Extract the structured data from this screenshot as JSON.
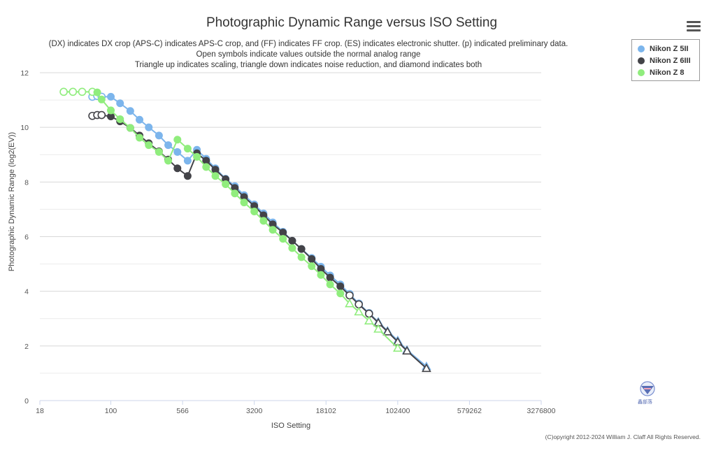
{
  "menu": {
    "icon": "hamburger-menu-icon"
  },
  "logo": {
    "text": "鑫部落",
    "icon": "blog-logo-icon"
  },
  "copyright": "(C)opyright 2012-2024 William J. Claff All Rights Reserved.",
  "chart_data": {
    "type": "line",
    "title": "Photographic Dynamic Range versus ISO Setting",
    "subtitle": [
      "(DX) indicates DX crop (APS-C) indicates APS-C crop, and (FF) indicates FF crop. (ES) indicates electronic shutter. (p) indicated preliminary data.",
      "Open symbols indicate values outside the normal analog range",
      "Triangle up indicates scaling, triangle down indicates noise reduction, and diamond indicates both"
    ],
    "xlabel": "ISO Setting",
    "ylabel": "Photographic Dynamic Range (log2(EV))",
    "x_scale": "log",
    "xlim": [
      18,
      3276800
    ],
    "x_ticks": [
      "18",
      "100",
      "566",
      "3200",
      "18102",
      "102400",
      "579262",
      "3276800"
    ],
    "x_tick_values": [
      18,
      100,
      566,
      3200,
      18102,
      102400,
      579262,
      3276800
    ],
    "ylim": [
      0,
      12
    ],
    "y_ticks": [
      "0",
      "2",
      "4",
      "6",
      "8",
      "10",
      "12"
    ],
    "y_tick_values": [
      0,
      2,
      4,
      6,
      8,
      10,
      12
    ],
    "grid": true,
    "legend_position": "top-right",
    "series": [
      {
        "name": "Nikon Z 5II",
        "color": "#7cb5ec",
        "points": [
          [
            64,
            11.12,
            "open"
          ],
          [
            72,
            11.15,
            "open"
          ],
          [
            80,
            11.12,
            "open"
          ],
          [
            100,
            11.12,
            "filled"
          ],
          [
            125,
            10.88,
            "filled"
          ],
          [
            160,
            10.6,
            "filled"
          ],
          [
            200,
            10.28,
            "filled"
          ],
          [
            250,
            10.0,
            "filled"
          ],
          [
            320,
            9.7,
            "filled"
          ],
          [
            400,
            9.35,
            "filled"
          ],
          [
            500,
            9.1,
            "filled"
          ],
          [
            640,
            8.78,
            "filled"
          ],
          [
            800,
            9.18,
            "filled"
          ],
          [
            1000,
            8.85,
            "filled"
          ],
          [
            1250,
            8.5,
            "filled"
          ],
          [
            1600,
            8.12,
            "filled"
          ],
          [
            2000,
            7.85,
            "filled"
          ],
          [
            2500,
            7.52,
            "filled"
          ],
          [
            3200,
            7.18,
            "filled"
          ],
          [
            4000,
            6.85,
            "filled"
          ],
          [
            5000,
            6.52,
            "filled"
          ],
          [
            6400,
            6.18,
            "filled"
          ],
          [
            8000,
            5.85,
            "filled"
          ],
          [
            10000,
            5.55,
            "filled"
          ],
          [
            12800,
            5.22,
            "filled"
          ],
          [
            16000,
            4.9,
            "filled"
          ],
          [
            20000,
            4.58,
            "filled"
          ],
          [
            25600,
            4.25,
            "filled"
          ],
          [
            32000,
            3.9,
            "open"
          ],
          [
            40000,
            3.55,
            "open"
          ],
          [
            51200,
            3.2,
            "open"
          ],
          [
            64000,
            2.88,
            "triangle-up"
          ],
          [
            80000,
            2.55,
            "triangle-up"
          ],
          [
            102400,
            2.2,
            "triangle-up"
          ],
          [
            128000,
            1.85,
            "triangle-up"
          ],
          [
            204800,
            1.25,
            "triangle-up"
          ]
        ]
      },
      {
        "name": "Nikon Z 6III",
        "color": "#434348",
        "points": [
          [
            64,
            10.42,
            "open"
          ],
          [
            72,
            10.45,
            "open"
          ],
          [
            80,
            10.45,
            "open"
          ],
          [
            100,
            10.4,
            "filled"
          ],
          [
            125,
            10.22,
            "filled"
          ],
          [
            160,
            9.98,
            "filled"
          ],
          [
            200,
            9.7,
            "filled"
          ],
          [
            250,
            9.42,
            "filled"
          ],
          [
            320,
            9.12,
            "filled"
          ],
          [
            400,
            8.82,
            "filled"
          ],
          [
            500,
            8.5,
            "filled"
          ],
          [
            640,
            8.22,
            "filled"
          ],
          [
            800,
            9.05,
            "filled"
          ],
          [
            1000,
            8.78,
            "filled"
          ],
          [
            1250,
            8.45,
            "filled"
          ],
          [
            1600,
            8.1,
            "filled"
          ],
          [
            2000,
            7.78,
            "filled"
          ],
          [
            2500,
            7.45,
            "filled"
          ],
          [
            3200,
            7.12,
            "filled"
          ],
          [
            4000,
            6.78,
            "filled"
          ],
          [
            5000,
            6.45,
            "filled"
          ],
          [
            6400,
            6.15,
            "filled"
          ],
          [
            8000,
            5.85,
            "filled"
          ],
          [
            10000,
            5.55,
            "filled"
          ],
          [
            12800,
            5.18,
            "filled"
          ],
          [
            16000,
            4.82,
            "filled"
          ],
          [
            20000,
            4.5,
            "filled"
          ],
          [
            25600,
            4.18,
            "filled"
          ],
          [
            32000,
            3.85,
            "open"
          ],
          [
            40000,
            3.52,
            "open"
          ],
          [
            51200,
            3.18,
            "open"
          ],
          [
            64000,
            2.85,
            "triangle-up"
          ],
          [
            80000,
            2.52,
            "triangle-up"
          ],
          [
            102400,
            2.15,
            "triangle-up"
          ],
          [
            128000,
            1.82,
            "triangle-up"
          ],
          [
            204800,
            1.18,
            "triangle-up"
          ]
        ]
      },
      {
        "name": "Nikon Z 8",
        "color": "#90ed7d",
        "points": [
          [
            32,
            11.3,
            "open"
          ],
          [
            40,
            11.3,
            "open"
          ],
          [
            50,
            11.3,
            "open"
          ],
          [
            64,
            11.3,
            "open"
          ],
          [
            72,
            11.28,
            "filled"
          ],
          [
            80,
            11.02,
            "filled"
          ],
          [
            100,
            10.62,
            "filled"
          ],
          [
            125,
            10.3,
            "filled"
          ],
          [
            160,
            9.98,
            "filled"
          ],
          [
            200,
            9.62,
            "filled"
          ],
          [
            250,
            9.35,
            "filled"
          ],
          [
            320,
            9.1,
            "filled"
          ],
          [
            400,
            8.78,
            "filled"
          ],
          [
            500,
            9.55,
            "filled"
          ],
          [
            640,
            9.22,
            "filled"
          ],
          [
            800,
            8.92,
            "filled"
          ],
          [
            1000,
            8.55,
            "filled"
          ],
          [
            1250,
            8.22,
            "filled"
          ],
          [
            1600,
            7.92,
            "filled"
          ],
          [
            2000,
            7.58,
            "filled"
          ],
          [
            2500,
            7.25,
            "filled"
          ],
          [
            3200,
            6.92,
            "filled"
          ],
          [
            4000,
            6.58,
            "filled"
          ],
          [
            5000,
            6.25,
            "filled"
          ],
          [
            6400,
            5.92,
            "filled"
          ],
          [
            8000,
            5.58,
            "filled"
          ],
          [
            10000,
            5.25,
            "filled"
          ],
          [
            12800,
            4.92,
            "filled"
          ],
          [
            16000,
            4.6,
            "filled"
          ],
          [
            20000,
            4.25,
            "filled"
          ],
          [
            25600,
            3.92,
            "filled"
          ],
          [
            32000,
            3.55,
            "triangle-up"
          ],
          [
            40000,
            3.25,
            "triangle-up"
          ],
          [
            51200,
            2.92,
            "triangle-up"
          ],
          [
            64000,
            2.62,
            "triangle-up"
          ],
          [
            102400,
            1.92,
            "triangle-up"
          ]
        ]
      }
    ]
  }
}
